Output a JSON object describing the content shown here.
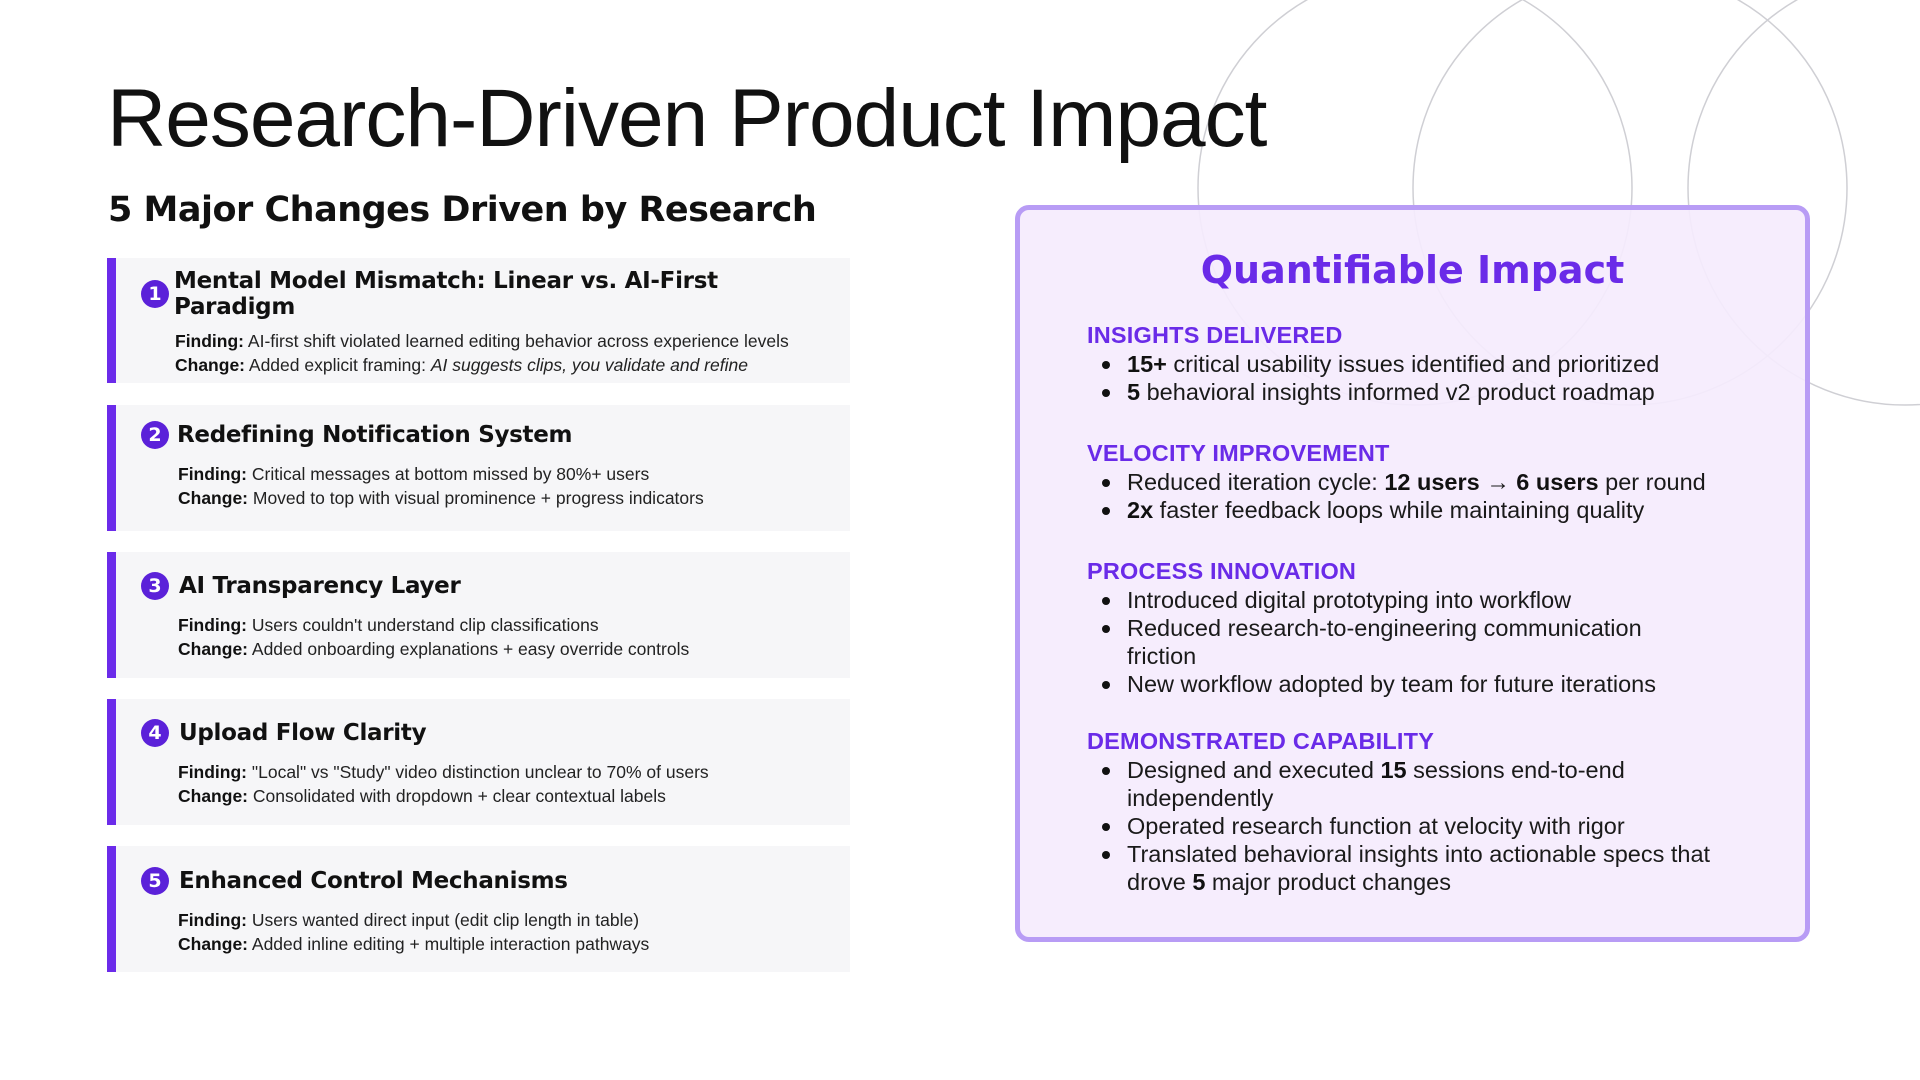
{
  "title": "Research-Driven Product Impact",
  "subtitle": "5 Major Changes Driven by Research",
  "changes": [
    {
      "number": "1",
      "title": "Mental Model Mismatch: Linear vs. AI-First Paradigm",
      "finding_label": "Finding:",
      "finding": "AI-first shift violated learned editing behavior across experience levels",
      "change_label": "Change:",
      "change": "Added explicit framing: ",
      "change_italic": "AI suggests clips, you validate and refine"
    },
    {
      "number": "2",
      "title": "Redefining Notification System",
      "finding_label": "Finding:",
      "finding": "Critical messages at bottom missed by 80%+ users",
      "change_label": "Change:",
      "change": "Moved to top with visual prominence + progress indicators"
    },
    {
      "number": "3",
      "title": "AI Transparency Layer",
      "finding_label": "Finding:",
      "finding": "Users couldn't understand clip classifications",
      "change_label": "Change:",
      "change": "Added onboarding explanations + easy override controls"
    },
    {
      "number": "4",
      "title": "Upload Flow Clarity",
      "finding_label": "Finding:",
      "finding": "\"Local\" vs \"Study\" video distinction unclear to 70% of users",
      "change_label": "Change:",
      "change": "Consolidated with dropdown + clear contextual labels"
    },
    {
      "number": "5",
      "title": "Enhanced Control Mechanisms",
      "finding_label": "Finding:",
      "finding": "Users wanted direct input (edit clip length in table)",
      "change_label": "Change:",
      "change": "Added inline editing + multiple interaction pathways"
    }
  ],
  "impact": {
    "title": "Quantifiable Impact",
    "sections": [
      {
        "label": "INSIGHTS DELIVERED",
        "items": [
          {
            "bold": "15+",
            "text": " critical usability issues identified and prioritized"
          },
          {
            "bold": "5",
            "text": " behavioral insights informed v2 product roadmap"
          }
        ]
      },
      {
        "label": "VELOCITY IMPROVEMENT",
        "items": [
          {
            "text": "Reduced iteration cycle: ",
            "bold": "12 users",
            "arrow": " → ",
            "bold2": "6 users",
            "text2": " per round"
          },
          {
            "bold": "2x",
            "text": " faster feedback loops while maintaining quality"
          }
        ]
      },
      {
        "label": "PROCESS INNOVATION",
        "items": [
          {
            "text": "Introduced digital prototyping into workflow"
          },
          {
            "text": "Reduced research-to-engineering communication friction"
          },
          {
            "text": "New workflow adopted by team for future iterations"
          }
        ]
      },
      {
        "label": "DEMONSTRATED CAPABILITY",
        "items": [
          {
            "text": "Designed and executed ",
            "bold": "15",
            "text2": " sessions end-to-end independently"
          },
          {
            "text": "Operated research function at velocity with rigor"
          },
          {
            "text": "Translated behavioral insights into actionable specs that drove ",
            "bold": "5",
            "text2": " major product changes"
          }
        ]
      }
    ]
  },
  "colors": {
    "accent": "#6a2be8",
    "badge": "#5b21d9",
    "card_bg": "#f6f6f8",
    "panel_bg": "#f5ecfd",
    "panel_border": "#b89cf5"
  }
}
